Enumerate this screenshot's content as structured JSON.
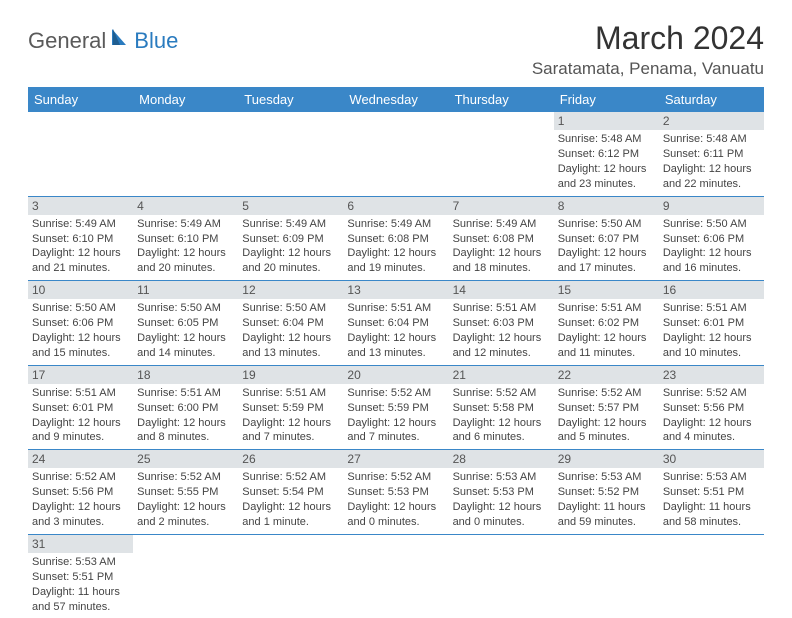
{
  "logo": {
    "part1": "General",
    "part2": "Blue"
  },
  "title": "March 2024",
  "location": "Saratamata, Penama, Vanuatu",
  "colors": {
    "header_bg": "#3a87c8",
    "header_fg": "#ffffff",
    "daynum_bg": "#dfe3e6",
    "row_border": "#3a87c8",
    "logo_blue": "#2a7bbf",
    "logo_gray": "#5a5a5a"
  },
  "weekdays": [
    "Sunday",
    "Monday",
    "Tuesday",
    "Wednesday",
    "Thursday",
    "Friday",
    "Saturday"
  ],
  "weeks": [
    [
      null,
      null,
      null,
      null,
      null,
      {
        "n": "1",
        "sr": "Sunrise: 5:48 AM",
        "ss": "Sunset: 6:12 PM",
        "dl": "Daylight: 12 hours and 23 minutes."
      },
      {
        "n": "2",
        "sr": "Sunrise: 5:48 AM",
        "ss": "Sunset: 6:11 PM",
        "dl": "Daylight: 12 hours and 22 minutes."
      }
    ],
    [
      {
        "n": "3",
        "sr": "Sunrise: 5:49 AM",
        "ss": "Sunset: 6:10 PM",
        "dl": "Daylight: 12 hours and 21 minutes."
      },
      {
        "n": "4",
        "sr": "Sunrise: 5:49 AM",
        "ss": "Sunset: 6:10 PM",
        "dl": "Daylight: 12 hours and 20 minutes."
      },
      {
        "n": "5",
        "sr": "Sunrise: 5:49 AM",
        "ss": "Sunset: 6:09 PM",
        "dl": "Daylight: 12 hours and 20 minutes."
      },
      {
        "n": "6",
        "sr": "Sunrise: 5:49 AM",
        "ss": "Sunset: 6:08 PM",
        "dl": "Daylight: 12 hours and 19 minutes."
      },
      {
        "n": "7",
        "sr": "Sunrise: 5:49 AM",
        "ss": "Sunset: 6:08 PM",
        "dl": "Daylight: 12 hours and 18 minutes."
      },
      {
        "n": "8",
        "sr": "Sunrise: 5:50 AM",
        "ss": "Sunset: 6:07 PM",
        "dl": "Daylight: 12 hours and 17 minutes."
      },
      {
        "n": "9",
        "sr": "Sunrise: 5:50 AM",
        "ss": "Sunset: 6:06 PM",
        "dl": "Daylight: 12 hours and 16 minutes."
      }
    ],
    [
      {
        "n": "10",
        "sr": "Sunrise: 5:50 AM",
        "ss": "Sunset: 6:06 PM",
        "dl": "Daylight: 12 hours and 15 minutes."
      },
      {
        "n": "11",
        "sr": "Sunrise: 5:50 AM",
        "ss": "Sunset: 6:05 PM",
        "dl": "Daylight: 12 hours and 14 minutes."
      },
      {
        "n": "12",
        "sr": "Sunrise: 5:50 AM",
        "ss": "Sunset: 6:04 PM",
        "dl": "Daylight: 12 hours and 13 minutes."
      },
      {
        "n": "13",
        "sr": "Sunrise: 5:51 AM",
        "ss": "Sunset: 6:04 PM",
        "dl": "Daylight: 12 hours and 13 minutes."
      },
      {
        "n": "14",
        "sr": "Sunrise: 5:51 AM",
        "ss": "Sunset: 6:03 PM",
        "dl": "Daylight: 12 hours and 12 minutes."
      },
      {
        "n": "15",
        "sr": "Sunrise: 5:51 AM",
        "ss": "Sunset: 6:02 PM",
        "dl": "Daylight: 12 hours and 11 minutes."
      },
      {
        "n": "16",
        "sr": "Sunrise: 5:51 AM",
        "ss": "Sunset: 6:01 PM",
        "dl": "Daylight: 12 hours and 10 minutes."
      }
    ],
    [
      {
        "n": "17",
        "sr": "Sunrise: 5:51 AM",
        "ss": "Sunset: 6:01 PM",
        "dl": "Daylight: 12 hours and 9 minutes."
      },
      {
        "n": "18",
        "sr": "Sunrise: 5:51 AM",
        "ss": "Sunset: 6:00 PM",
        "dl": "Daylight: 12 hours and 8 minutes."
      },
      {
        "n": "19",
        "sr": "Sunrise: 5:51 AM",
        "ss": "Sunset: 5:59 PM",
        "dl": "Daylight: 12 hours and 7 minutes."
      },
      {
        "n": "20",
        "sr": "Sunrise: 5:52 AM",
        "ss": "Sunset: 5:59 PM",
        "dl": "Daylight: 12 hours and 7 minutes."
      },
      {
        "n": "21",
        "sr": "Sunrise: 5:52 AM",
        "ss": "Sunset: 5:58 PM",
        "dl": "Daylight: 12 hours and 6 minutes."
      },
      {
        "n": "22",
        "sr": "Sunrise: 5:52 AM",
        "ss": "Sunset: 5:57 PM",
        "dl": "Daylight: 12 hours and 5 minutes."
      },
      {
        "n": "23",
        "sr": "Sunrise: 5:52 AM",
        "ss": "Sunset: 5:56 PM",
        "dl": "Daylight: 12 hours and 4 minutes."
      }
    ],
    [
      {
        "n": "24",
        "sr": "Sunrise: 5:52 AM",
        "ss": "Sunset: 5:56 PM",
        "dl": "Daylight: 12 hours and 3 minutes."
      },
      {
        "n": "25",
        "sr": "Sunrise: 5:52 AM",
        "ss": "Sunset: 5:55 PM",
        "dl": "Daylight: 12 hours and 2 minutes."
      },
      {
        "n": "26",
        "sr": "Sunrise: 5:52 AM",
        "ss": "Sunset: 5:54 PM",
        "dl": "Daylight: 12 hours and 1 minute."
      },
      {
        "n": "27",
        "sr": "Sunrise: 5:52 AM",
        "ss": "Sunset: 5:53 PM",
        "dl": "Daylight: 12 hours and 0 minutes."
      },
      {
        "n": "28",
        "sr": "Sunrise: 5:53 AM",
        "ss": "Sunset: 5:53 PM",
        "dl": "Daylight: 12 hours and 0 minutes."
      },
      {
        "n": "29",
        "sr": "Sunrise: 5:53 AM",
        "ss": "Sunset: 5:52 PM",
        "dl": "Daylight: 11 hours and 59 minutes."
      },
      {
        "n": "30",
        "sr": "Sunrise: 5:53 AM",
        "ss": "Sunset: 5:51 PM",
        "dl": "Daylight: 11 hours and 58 minutes."
      }
    ],
    [
      {
        "n": "31",
        "sr": "Sunrise: 5:53 AM",
        "ss": "Sunset: 5:51 PM",
        "dl": "Daylight: 11 hours and 57 minutes."
      },
      null,
      null,
      null,
      null,
      null,
      null
    ]
  ]
}
